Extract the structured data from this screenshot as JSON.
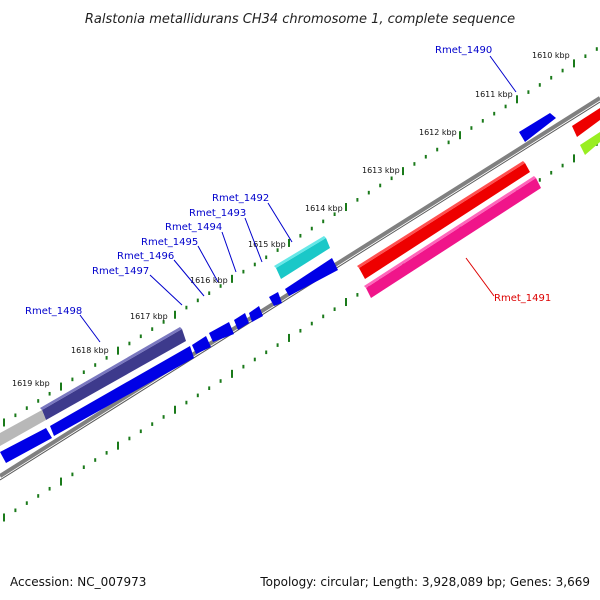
{
  "title": "Ralstonia metallidurans CH34 chromosome 1, complete sequence",
  "footer": {
    "accession": "Accession: NC_007973",
    "stats": "Topology: circular; Length: 3,928,089 bp; Genes: 3,669"
  },
  "scale_labels": [
    "1610 kbp",
    "1611 kbp",
    "1612 kbp",
    "1613 kbp",
    "1614 kbp",
    "1615 kbp",
    "1616 kbp",
    "1617 kbp",
    "1618 kbp",
    "1619 kbp"
  ],
  "gene_labels": {
    "rmet_1490": "Rmet_1490",
    "rmet_1491": "Rmet_1491",
    "rmet_1492": "Rmet_1492",
    "rmet_1493": "Rmet_1493",
    "rmet_1494": "Rmet_1494",
    "rmet_1495": "Rmet_1495",
    "rmet_1496": "Rmet_1496",
    "rmet_1497": "Rmet_1497",
    "rmet_1498": "Rmet_1498"
  },
  "colors": {
    "blue": "#0000e6",
    "navy": "#3d3a8c",
    "red": "#ee0000",
    "pink": "#f0158a",
    "cyan": "#1ac8c8",
    "grey": "#b8b8b8",
    "lime": "#99ee22",
    "backbone": "#808080",
    "tick": "#1a7a1a",
    "label_blue": "#0000cc",
    "label_red": "#dd0000"
  }
}
